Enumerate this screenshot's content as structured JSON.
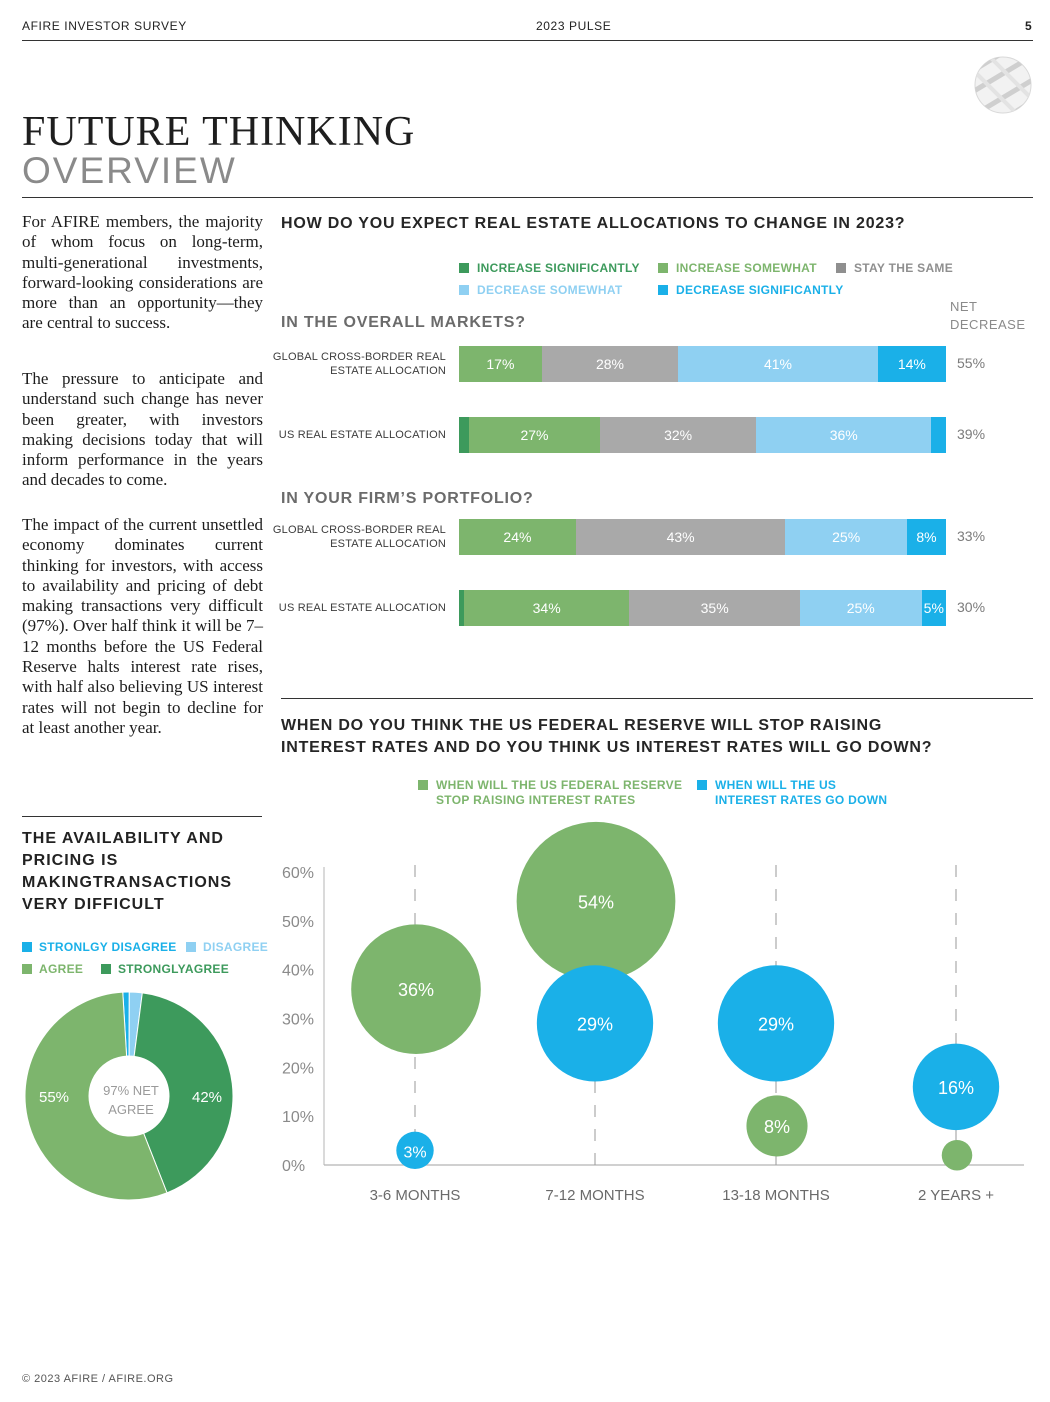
{
  "header": {
    "left": "AFIRE INVESTOR SURVEY",
    "center": "2023 PULSE",
    "page": "5"
  },
  "title": {
    "line1": "FUTURE THINKING",
    "line2": "OVERVIEW"
  },
  "body": {
    "p1": "For AFIRE members, the majority of whom focus on long-term, multi-generational investments, forward-looking considerations are more than an opportunity—they are central to success.",
    "p2": "The pressure to anticipate and understand such change has never been greater, with investors making decisions today that will inform performance in the years and decades to come.",
    "p3": "The impact of the current unsettled economy dominates current thinking for investors, with access to availability and pricing of debt making transactions very difficult (97%). Over half think it will be 7–12 months before the US Federal Reserve halts interest rate rises, with half also believing US interest rates will not begin to decline for at least another year."
  },
  "colors": {
    "increase_significantly": "#3d9a5c",
    "increase_somewhat": "#7db56d",
    "stay_same": "#a9a9a9",
    "decrease_somewhat": "#8fd0f2",
    "decrease_significantly": "#1ab0e8"
  },
  "alloc": {
    "question": "HOW DO YOU EXPECT REAL ESTATE ALLOCATIONS TO CHANGE IN 2023?",
    "legend": [
      {
        "label": "INCREASE SIGNIFICANTLY",
        "color": "#3d9a5c"
      },
      {
        "label": "INCREASE SOMEWHAT",
        "color": "#7db56d"
      },
      {
        "label": "STAY THE SAME",
        "color": "#8f8f8f"
      },
      {
        "label": "DECREASE SOMEWHAT",
        "color": "#8fd0f2"
      },
      {
        "label": "DECREASE SIGNIFICANTLY",
        "color": "#1ab0e8"
      }
    ],
    "net_header": "NET DECREASE",
    "section1": "IN THE OVERALL MARKETS?",
    "section2": "IN YOUR FIRM’S PORTFOLIO?",
    "rows": [
      {
        "label": "GLOBAL CROSS-BORDER REAL ESTATE ALLOCATION",
        "values": [
          0,
          17,
          28,
          41,
          14
        ],
        "labels": [
          "",
          "17%",
          "28%",
          "41%",
          "14%"
        ],
        "net": "55%"
      },
      {
        "label": "US REAL ESTATE ALLOCATION",
        "values": [
          2,
          27,
          32,
          36,
          3
        ],
        "labels": [
          "",
          "27%",
          "32%",
          "36%",
          ""
        ],
        "net": "39%"
      },
      {
        "label": "GLOBAL CROSS-BORDER REAL ESTATE ALLOCATION",
        "values": [
          0,
          24,
          43,
          25,
          8
        ],
        "labels": [
          "",
          "24%",
          "43%",
          "25%",
          "8%"
        ],
        "net": "33%"
      },
      {
        "label": "US REAL ESTATE ALLOCATION",
        "values": [
          1,
          34,
          35,
          25,
          5
        ],
        "labels": [
          "",
          "34%",
          "35%",
          "25%",
          "5%"
        ],
        "net": "30%"
      }
    ]
  },
  "fed": {
    "question_line1": "WHEN DO YOU THINK THE US FEDERAL RESERVE WILL STOP RAISING",
    "question_line2": "INTEREST RATES AND DO YOU THINK US INTEREST RATES WILL GO DOWN?",
    "legend": [
      {
        "label_line1": "WHEN WILL THE US FEDERAL RESERVE",
        "label_line2": "STOP RAISING INTEREST RATES",
        "color": "#7db56d"
      },
      {
        "label_line1": "WHEN WILL THE US",
        "label_line2": "INTEREST RATES GO DOWN",
        "color": "#1ab0e8"
      }
    ]
  },
  "chart_data": [
    {
      "type": "bar",
      "title": "HOW DO YOU EXPECT REAL ESTATE ALLOCATIONS TO CHANGE IN 2023?",
      "orientation": "horizontal-stacked",
      "categories": [
        "GLOBAL CROSS-BORDER REAL ESTATE ALLOCATION (OVERALL MARKETS)",
        "US REAL ESTATE ALLOCATION (OVERALL MARKETS)",
        "GLOBAL CROSS-BORDER REAL ESTATE ALLOCATION (FIRM'S PORTFOLIO)",
        "US REAL ESTATE ALLOCATION (FIRM'S PORTFOLIO)"
      ],
      "series": [
        {
          "name": "INCREASE SIGNIFICANTLY",
          "values": [
            0,
            2,
            0,
            1
          ]
        },
        {
          "name": "INCREASE SOMEWHAT",
          "values": [
            17,
            27,
            24,
            34
          ]
        },
        {
          "name": "STAY THE SAME",
          "values": [
            28,
            32,
            43,
            35
          ]
        },
        {
          "name": "DECREASE SOMEWHAT",
          "values": [
            41,
            36,
            25,
            25
          ]
        },
        {
          "name": "DECREASE SIGNIFICANTLY",
          "values": [
            14,
            3,
            8,
            5
          ]
        }
      ],
      "net_decrease": [
        55,
        39,
        33,
        30
      ]
    },
    {
      "type": "scatter",
      "title": "WHEN DO YOU THINK THE US FEDERAL RESERVE WILL STOP RAISING INTEREST RATES AND DO YOU THINK US INTEREST RATES WILL GO DOWN?",
      "categories": [
        "3-6 MONTHS",
        "7-12 MONTHS",
        "13-18 MONTHS",
        "2 YEARS +"
      ],
      "yticks": [
        "0%",
        "10%",
        "20%",
        "30%",
        "40%",
        "50%",
        "60%"
      ],
      "ylim": [
        0,
        60
      ],
      "series": [
        {
          "name": "WHEN WILL THE US FEDERAL RESERVE STOP RAISING INTEREST RATES",
          "color": "#7db56d",
          "values": [
            36,
            54,
            8,
            2
          ],
          "labels": [
            "36%",
            "54%",
            "8%",
            ""
          ]
        },
        {
          "name": "WHEN WILL THE US INTEREST RATES GO DOWN",
          "color": "#1ab0e8",
          "values": [
            3,
            29,
            29,
            16
          ],
          "labels": [
            "3%",
            "29%",
            "29%",
            "16%"
          ]
        }
      ]
    },
    {
      "type": "pie",
      "title": "THE AVAILABILITY AND PRICING IS MAKINGTRANSACTIONS VERY DIFFICULT",
      "slices": [
        {
          "name": "STRONGLY AGREE",
          "value": 42,
          "label": "42%",
          "color": "#3d9a5c"
        },
        {
          "name": "AGREE",
          "value": 55,
          "label": "55%",
          "color": "#7db56d"
        },
        {
          "name": "STRONLGY DISAGREE",
          "value": 1,
          "label": "",
          "color": "#1ab0e8"
        },
        {
          "name": "DISAGREE",
          "value": 2,
          "label": "",
          "color": "#8fd0f2"
        }
      ],
      "center_text": "97% NET AGREE"
    }
  ],
  "donut": {
    "title": "THE AVAILABILITY AND PRICING IS MAKINGTRANSACTIONS VERY DIFFICULT",
    "legend": [
      {
        "label": "STRONLGY DISAGREE",
        "color": "#1ab0e8"
      },
      {
        "label": "DISAGREE",
        "color": "#8fd0f2"
      },
      {
        "label": "AGREE",
        "color": "#7db56d"
      },
      {
        "label": "STRONGLYAGREE",
        "color": "#3d9a5c"
      }
    ],
    "center_line1": "97% NET",
    "center_line2": "AGREE",
    "label_left": "55%",
    "label_right": "42%"
  },
  "footer": "© 2023 AFIRE / AFIRE.ORG"
}
